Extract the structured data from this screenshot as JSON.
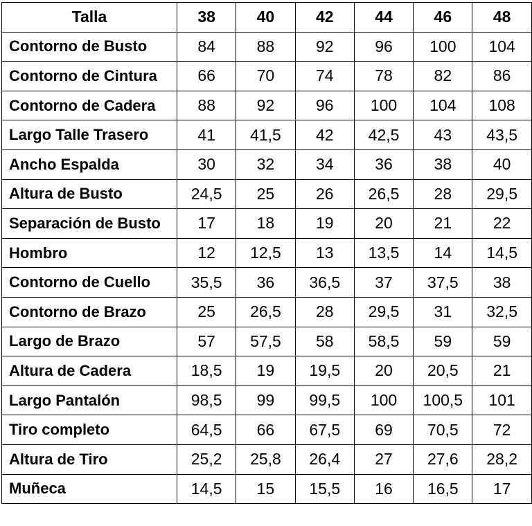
{
  "table": {
    "header_label": "Talla",
    "sizes": [
      "38",
      "40",
      "42",
      "44",
      "46",
      "48"
    ],
    "rows": [
      {
        "label": "Contorno de Busto",
        "values": [
          "84",
          "88",
          "92",
          "96",
          "100",
          "104"
        ]
      },
      {
        "label": "Contorno de Cintura",
        "values": [
          "66",
          "70",
          "74",
          "78",
          "82",
          "86"
        ]
      },
      {
        "label": "Contorno de Cadera",
        "values": [
          "88",
          "92",
          "96",
          "100",
          "104",
          "108"
        ]
      },
      {
        "label": "Largo Talle Trasero",
        "values": [
          "41",
          "41,5",
          "42",
          "42,5",
          "43",
          "43,5"
        ]
      },
      {
        "label": "Ancho Espalda",
        "values": [
          "30",
          "32",
          "34",
          "36",
          "38",
          "40"
        ]
      },
      {
        "label": "Altura de Busto",
        "values": [
          "24,5",
          "25",
          "26",
          "26,5",
          "28",
          "29,5"
        ]
      },
      {
        "label": "Separación de Busto",
        "values": [
          "17",
          "18",
          "19",
          "20",
          "21",
          "22"
        ]
      },
      {
        "label": "Hombro",
        "values": [
          "12",
          "12,5",
          "13",
          "13,5",
          "14",
          "14,5"
        ]
      },
      {
        "label": "Contorno de Cuello",
        "values": [
          "35,5",
          "36",
          "36,5",
          "37",
          "37,5",
          "38"
        ]
      },
      {
        "label": "Contorno de Brazo",
        "values": [
          "25",
          "26,5",
          "28",
          "29,5",
          "31",
          "32,5"
        ]
      },
      {
        "label": "Largo de Brazo",
        "values": [
          "57",
          "57,5",
          "58",
          "58,5",
          "59",
          "59"
        ]
      },
      {
        "label": "Altura de Cadera",
        "values": [
          "18,5",
          "19",
          "19,5",
          "20",
          "20,5",
          "21"
        ]
      },
      {
        "label": "Largo Pantalón",
        "values": [
          "98,5",
          "99",
          "99,5",
          "100",
          "100,5",
          "101"
        ]
      },
      {
        "label": "Tiro completo",
        "values": [
          "64,5",
          "66",
          "67,5",
          "69",
          "70,5",
          "72"
        ]
      },
      {
        "label": "Altura de Tiro",
        "values": [
          "25,2",
          "25,8",
          "26,4",
          "27",
          "27,6",
          "28,2"
        ]
      },
      {
        "label": "Muñeca",
        "values": [
          "14,5",
          "15",
          "15,5",
          "16",
          "16,5",
          "17"
        ]
      }
    ]
  }
}
